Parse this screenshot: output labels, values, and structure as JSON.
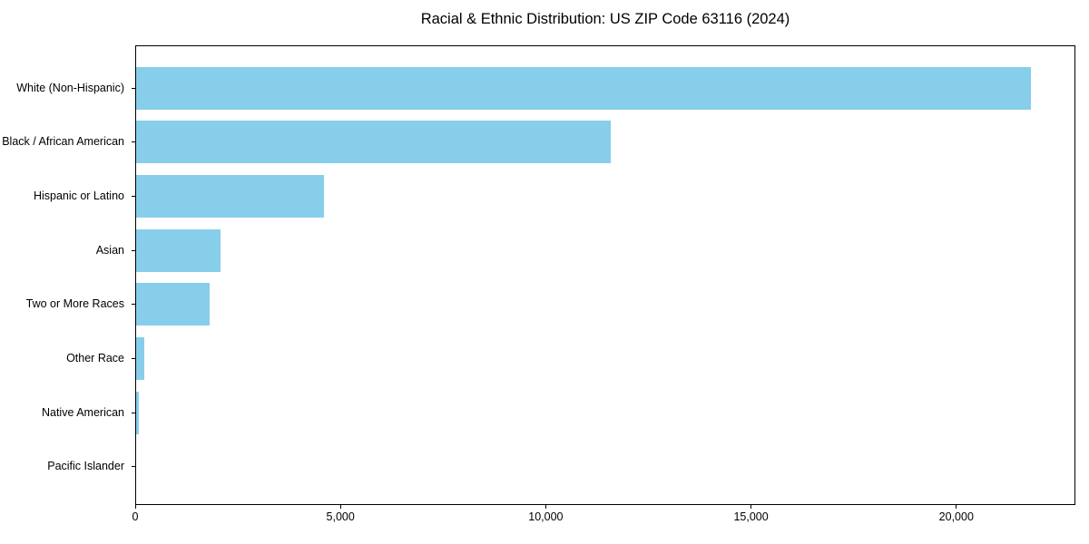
{
  "title": "Racial & Ethnic Distribution: US ZIP Code 63116 (2024)",
  "chart_data": {
    "type": "bar",
    "orientation": "horizontal",
    "title": "Racial & Ethnic Distribution: US ZIP Code 63116 (2024)",
    "xlabel": "",
    "ylabel": "",
    "categories": [
      "White (Non-Hispanic)",
      "Black / African American",
      "Hispanic or Latino",
      "Asian",
      "Two or More Races",
      "Other Race",
      "Native American",
      "Pacific Islander"
    ],
    "values": [
      21800,
      11550,
      4580,
      2050,
      1790,
      200,
      65,
      0
    ],
    "xlim": [
      0,
      22900
    ],
    "x_ticks": [
      0,
      5000,
      10000,
      15000,
      20000
    ],
    "x_tick_labels": [
      "0",
      "5,000",
      "10,000",
      "15,000",
      "20,000"
    ],
    "bar_color": "#87CEEB",
    "axis_color": "#000000",
    "grid": false,
    "legend": false
  }
}
